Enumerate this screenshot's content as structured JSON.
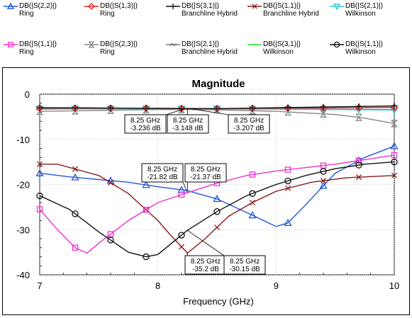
{
  "legend": [
    {
      "label": "DB(|S(2,2)|)",
      "sub": "Ring",
      "color": "#2255dd",
      "marker": "triangle-up"
    },
    {
      "label": "DB(|S(1,3)|)",
      "sub": "Ring",
      "color": "#e8231f",
      "marker": "diamond"
    },
    {
      "label": "DB(|S(3,1)|)",
      "sub": "Branchline Hybrid",
      "color": "#111111",
      "marker": "plus"
    },
    {
      "label": "DB(|S(1,1)|)",
      "sub": "Branchline Hybrid",
      "color": "#8b1a1a",
      "marker": "x"
    },
    {
      "label": "DB(|S(2,1)|)",
      "sub": "Wilkinson",
      "color": "#29c7d6",
      "marker": "triangle-down"
    },
    {
      "label": "DB(|S(1,1)|)",
      "sub": "Ring",
      "color": "#ee33cc",
      "marker": "square"
    },
    {
      "label": "DB(|S(2,3)|)",
      "sub": "Ring",
      "color": "#888888",
      "marker": "hourglass"
    },
    {
      "label": "DB(|S(2,1)|)",
      "sub": "Branchline Hybrid",
      "color": "#777777",
      "marker": "tilde"
    },
    {
      "label": "DB(|S(3,1)|)",
      "sub": "Wilkinson",
      "color": "#22dd22",
      "marker": "none"
    },
    {
      "label": "DB(|S(1,1)|)",
      "sub": "Wilkinson",
      "color": "#111111",
      "marker": "circle"
    }
  ],
  "chart_data": {
    "type": "line",
    "title": "Magnitude",
    "xlabel": "Frequency (GHz)",
    "ylabel": "",
    "xlim": [
      7,
      10
    ],
    "ylim": [
      -40,
      0
    ],
    "xticks": [
      "7",
      "8",
      "9",
      "10"
    ],
    "yticks": [
      "0",
      "-10",
      "-20",
      "-30",
      "-40"
    ],
    "grid": true,
    "series": [
      {
        "name": "DB(|S(2,2)|) Ring",
        "color": "#2255dd",
        "marker": "triangle-up",
        "x": [
          7,
          7.25,
          7.5,
          7.75,
          8,
          8.25,
          8.5,
          8.75,
          9,
          9.1,
          9.25,
          9.5,
          9.75,
          10
        ],
        "y": [
          -17.5,
          -18.3,
          -18.9,
          -19.5,
          -20.5,
          -21.37,
          -23.2,
          -26.2,
          -29.3,
          -28.5,
          -24.5,
          -17.5,
          -14,
          -11.5
        ]
      },
      {
        "name": "DB(|S(1,3)|) Ring",
        "color": "#e8231f",
        "marker": "diamond",
        "x": [
          7,
          7.5,
          8,
          8.25,
          8.5,
          9,
          9.5,
          10
        ],
        "y": [
          -3.1,
          -3.1,
          -3.1,
          -3.148,
          -3.2,
          -3.1,
          -3.0,
          -2.9
        ]
      },
      {
        "name": "DB(|S(3,1)|) Branchline Hybrid",
        "color": "#111111",
        "marker": "plus",
        "x": [
          7,
          7.5,
          8,
          8.25,
          8.5,
          9,
          9.5,
          10
        ],
        "y": [
          -3.0,
          -3.05,
          -3.15,
          -3.207,
          -3.2,
          -3.0,
          -2.8,
          -2.6
        ]
      },
      {
        "name": "DB(|S(1,1)|) Branchline Hybrid",
        "color": "#8b1a1a",
        "marker": "x",
        "x": [
          7,
          7.15,
          7.5,
          7.75,
          8,
          8.1,
          8.25,
          8.4,
          8.6,
          8.8,
          9,
          9.3,
          9.6,
          10
        ],
        "y": [
          -15.5,
          -15.5,
          -18,
          -22,
          -28,
          -31,
          -35.2,
          -32,
          -27,
          -24,
          -21.5,
          -19.5,
          -18.5,
          -18
        ]
      },
      {
        "name": "DB(|S(2,1)|) Wilkinson",
        "color": "#29c7d6",
        "marker": "triangle-down",
        "x": [
          7,
          7.5,
          8,
          8.25,
          8.5,
          9,
          9.5,
          10
        ],
        "y": [
          -3.2,
          -3.2,
          -3.2,
          -3.236,
          -3.2,
          -3.3,
          -3.4,
          -3.5
        ]
      },
      {
        "name": "DB(|S(1,1)|) Ring",
        "color": "#ee33cc",
        "marker": "square",
        "x": [
          7,
          7.15,
          7.3,
          7.4,
          7.5,
          7.75,
          8,
          8.25,
          8.5,
          8.75,
          9,
          9.5,
          10
        ],
        "y": [
          -25.5,
          -30,
          -34,
          -35.2,
          -33,
          -28,
          -24,
          -21.82,
          -19.7,
          -18,
          -17,
          -15.5,
          -13.5
        ]
      },
      {
        "name": "DB(|S(2,3)|) Ring",
        "color": "#888888",
        "marker": "hourglass",
        "x": [
          7,
          7.5,
          8,
          8.25,
          8.5,
          9,
          9.5,
          9.75,
          10
        ],
        "y": [
          -3.8,
          -3.6,
          -3.4,
          -3.4,
          -3.45,
          -3.8,
          -4.5,
          -5.3,
          -6.5
        ]
      },
      {
        "name": "DB(|S(2,1)|) Branchline Hybrid",
        "color": "#777777",
        "marker": "tilde",
        "x": [
          7,
          7.5,
          8,
          8.25,
          8.5,
          9,
          9.5,
          10
        ],
        "y": [
          -3.3,
          -3.2,
          -3.2,
          -3.25,
          -3.2,
          -3.2,
          -3.3,
          -3.4
        ]
      },
      {
        "name": "DB(|S(3,1)|) Wilkinson",
        "color": "#22dd22",
        "marker": "none",
        "x": [
          7,
          7.5,
          8,
          8.25,
          8.5,
          9,
          9.5,
          10
        ],
        "y": [
          -3.25,
          -3.25,
          -3.25,
          -3.25,
          -3.28,
          -3.3,
          -3.35,
          -3.4
        ]
      },
      {
        "name": "DB(|S(1,1)|) Wilkinson",
        "color": "#111111",
        "marker": "circle",
        "x": [
          7,
          7.25,
          7.5,
          7.75,
          7.9,
          8,
          8.25,
          8.5,
          8.75,
          9,
          9.25,
          9.5,
          9.75,
          10
        ],
        "y": [
          -22.5,
          -25.5,
          -30.5,
          -35,
          -36,
          -35.5,
          -30.15,
          -26,
          -22.5,
          -20,
          -18,
          -16.5,
          -15.5,
          -15
        ]
      }
    ],
    "annotations": [
      {
        "lines": [
          "8.25 GHz",
          "-3.236 dB"
        ]
      },
      {
        "lines": [
          "8.25 GHz",
          "-3.148 dB"
        ]
      },
      {
        "lines": [
          "8.25 GHz",
          "-3.207 dB"
        ]
      },
      {
        "lines": [
          "8.25 GHz",
          "-21.82 dB"
        ]
      },
      {
        "lines": [
          "8.25 GHz",
          "-21.37 dB"
        ]
      },
      {
        "lines": [
          "8.25 GHz",
          "-35.2 dB"
        ]
      },
      {
        "lines": [
          "8.25 GHz",
          "-30.15 dB"
        ]
      }
    ]
  }
}
